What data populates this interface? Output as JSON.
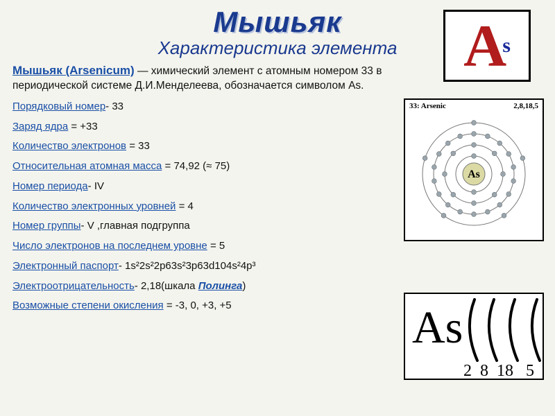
{
  "title": "Мышьяк",
  "subtitle": "Характеристика элемента",
  "intro": {
    "head": "Мышьяк (Arsenicum)",
    "rest": " — химический элемент с атомным номером 33 в периодической системе Д.И.Менделеева, обозначается символом As."
  },
  "props": [
    {
      "label": "Порядковый номер",
      "sep": "- ",
      "value": "33"
    },
    {
      "label": "Заряд ядра",
      "sep": " = ",
      "value": "+33"
    },
    {
      "label": "Количество электронов",
      "sep": " = ",
      "value": "33"
    },
    {
      "label": "Относительная атомная масса",
      "sep": " = ",
      "value": "74,92 (≈ 75)"
    },
    {
      "label": "Номер периода",
      "sep": "- ",
      "value": "IV"
    },
    {
      "label": "Количество электронных уровней",
      "sep": " = ",
      "value": "4"
    },
    {
      "label": "Номер группы",
      "sep": "- ",
      "value": "V ,главная подгруппа"
    },
    {
      "label": "Число электронов на последнем уровне",
      "sep": " = ",
      "value": "5"
    },
    {
      "label": "Электронный паспорт",
      "sep": "- ",
      "value": "1s²2s²2p63s²3p63d104s²4p³"
    },
    {
      "label": "Электроотрицательность",
      "sep": "- ",
      "value": "2,18(шкала ",
      "link": "Полинга",
      "after": ")"
    },
    {
      "label": "Возможные степени окисления",
      "sep": " = ",
      "value": " -3, 0, +3, +5"
    }
  ],
  "logo": {
    "big": "A",
    "sub": "s",
    "big_color": "#b11c1c",
    "sub_color": "#1a2a9a"
  },
  "atom": {
    "header_left": "33: Arsenic",
    "header_right": "2,8,18,5",
    "symbol": "As",
    "nucleus_color": "#dbdaa4",
    "electron_color": "#9aa5ac",
    "ring_color": "#777777",
    "shells": [
      {
        "r": 26,
        "count": 2
      },
      {
        "r": 42,
        "count": 8
      },
      {
        "r": 58,
        "count": 18
      },
      {
        "r": 74,
        "count": 5
      }
    ]
  },
  "shelldiagram": {
    "symbol": "As",
    "counts": [
      2,
      8,
      18,
      5
    ]
  },
  "colors": {
    "bg": "#f4f4ee",
    "heading": "#1a3a8f",
    "link": "#194fa6",
    "text": "#111111",
    "box_border": "#000000"
  }
}
